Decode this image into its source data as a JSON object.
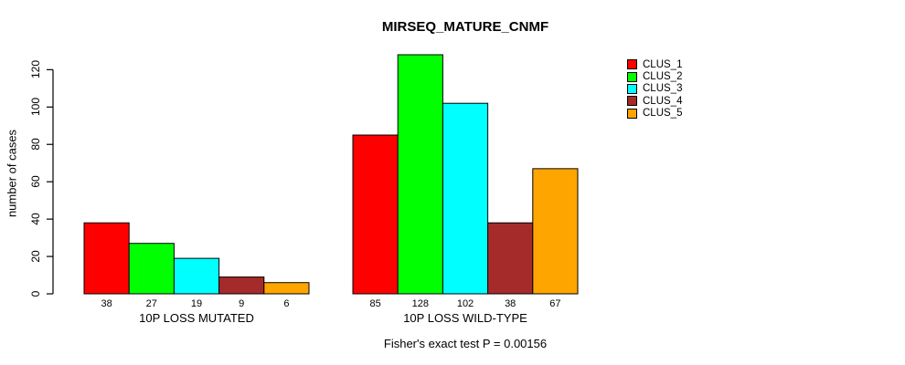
{
  "title": "MIRSEQ_MATURE_CNMF",
  "y_axis": {
    "label": "number of cases",
    "ticks": [
      0,
      20,
      40,
      60,
      80,
      100,
      120
    ]
  },
  "footer": "Fisher's exact test P = 0.00156",
  "legend": {
    "position": "right",
    "entries": [
      {
        "label": "CLUS_1",
        "color": "#ff0000"
      },
      {
        "label": "CLUS_2",
        "color": "#00ff00"
      },
      {
        "label": "CLUS_3",
        "color": "#00ffff"
      },
      {
        "label": "CLUS_4",
        "color": "#a52a2a"
      },
      {
        "label": "CLUS_5",
        "color": "#ffa500"
      }
    ]
  },
  "chart_data": {
    "type": "bar",
    "title": "MIRSEQ_MATURE_CNMF",
    "ylabel": "number of cases",
    "xlabel": "",
    "ylim": [
      0,
      128
    ],
    "yticks": [
      0,
      20,
      40,
      60,
      80,
      100,
      120
    ],
    "grid": false,
    "legend_position": "right",
    "bar_value_labels": true,
    "categories": [
      "10P LOSS MUTATED",
      "10P LOSS WILD-TYPE"
    ],
    "series": [
      {
        "name": "CLUS_1",
        "color": "#ff0000",
        "values": [
          38,
          85
        ]
      },
      {
        "name": "CLUS_2",
        "color": "#00ff00",
        "values": [
          27,
          128
        ]
      },
      {
        "name": "CLUS_3",
        "color": "#00ffff",
        "values": [
          19,
          102
        ]
      },
      {
        "name": "CLUS_4",
        "color": "#a52a2a",
        "values": [
          9,
          38
        ]
      },
      {
        "name": "CLUS_5",
        "color": "#ffa500",
        "values": [
          6,
          67
        ]
      }
    ],
    "annotation": "Fisher's exact test P = 0.00156"
  }
}
